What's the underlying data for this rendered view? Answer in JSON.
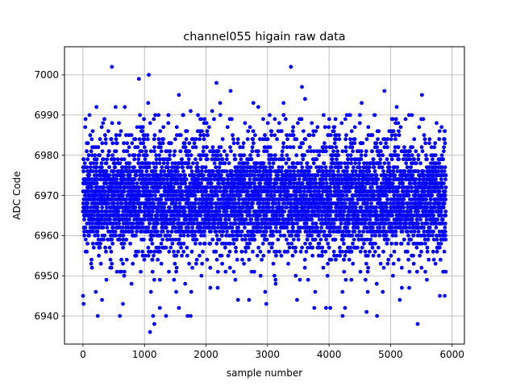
{
  "chart_data": {
    "type": "scatter",
    "title": "channel055 higain raw data",
    "xlabel": "sample number",
    "ylabel": "ADC Code",
    "xlim": [
      -300,
      6200
    ],
    "ylim": [
      6933,
      7007
    ],
    "xticks": [
      0,
      1000,
      2000,
      3000,
      4000,
      5000,
      6000
    ],
    "yticks": [
      6940,
      6950,
      6960,
      6970,
      6980,
      6990,
      7000
    ],
    "grid": true,
    "marker_color": "#0000ff",
    "n_points": 5900,
    "central_band": {
      "y_min": 6953,
      "y_max": 6987,
      "most_frequent": [
        6962,
        6965,
        6967,
        6970,
        6972,
        6975
      ]
    },
    "outliers": [
      {
        "x": 470,
        "y": 7002
      },
      {
        "x": 1070,
        "y": 7000
      },
      {
        "x": 910,
        "y": 6999
      },
      {
        "x": 3380,
        "y": 7002
      },
      {
        "x": 2170,
        "y": 6998
      },
      {
        "x": 3560,
        "y": 6997
      },
      {
        "x": 2400,
        "y": 6996
      },
      {
        "x": 1560,
        "y": 6995
      },
      {
        "x": 5510,
        "y": 6995
      },
      {
        "x": 4900,
        "y": 6996
      },
      {
        "x": 3610,
        "y": 6994
      },
      {
        "x": 1060,
        "y": 6993
      },
      {
        "x": 2230,
        "y": 6993
      },
      {
        "x": 2770,
        "y": 6993
      },
      {
        "x": 3260,
        "y": 6993
      },
      {
        "x": 4530,
        "y": 6993
      },
      {
        "x": 5100,
        "y": 6992
      },
      {
        "x": 220,
        "y": 6992
      },
      {
        "x": 530,
        "y": 6992
      },
      {
        "x": 680,
        "y": 6992
      },
      {
        "x": 2850,
        "y": 6992
      },
      {
        "x": 1750,
        "y": 6991
      },
      {
        "x": 2100,
        "y": 6991
      },
      {
        "x": 1870,
        "y": 6990
      },
      {
        "x": 4330,
        "y": 6990
      },
      {
        "x": 5300,
        "y": 6990
      },
      {
        "x": 1090,
        "y": 6936
      },
      {
        "x": 5440,
        "y": 6938
      },
      {
        "x": 1160,
        "y": 6938
      },
      {
        "x": 1140,
        "y": 6940
      },
      {
        "x": 240,
        "y": 6940
      },
      {
        "x": 600,
        "y": 6940
      },
      {
        "x": 1350,
        "y": 6940
      },
      {
        "x": 1700,
        "y": 6940
      },
      {
        "x": 1750,
        "y": 6940
      },
      {
        "x": 4220,
        "y": 6940
      },
      {
        "x": 4780,
        "y": 6940
      },
      {
        "x": 1250,
        "y": 6942
      },
      {
        "x": 1560,
        "y": 6942
      },
      {
        "x": 3950,
        "y": 6942
      },
      {
        "x": 4020,
        "y": 6942
      },
      {
        "x": 4260,
        "y": 6942
      },
      {
        "x": 4610,
        "y": 6941
      },
      {
        "x": 2980,
        "y": 6943
      },
      {
        "x": 650,
        "y": 6943
      },
      {
        "x": 10,
        "y": 6943
      },
      {
        "x": 2520,
        "y": 6944
      },
      {
        "x": 2700,
        "y": 6944
      },
      {
        "x": 3480,
        "y": 6944
      },
      {
        "x": 5150,
        "y": 6944
      },
      {
        "x": 5800,
        "y": 6945
      },
      {
        "x": 5880,
        "y": 6945
      },
      {
        "x": 1,
        "y": 6945
      },
      {
        "x": 310,
        "y": 6944
      },
      {
        "x": 3760,
        "y": 6942
      }
    ]
  }
}
